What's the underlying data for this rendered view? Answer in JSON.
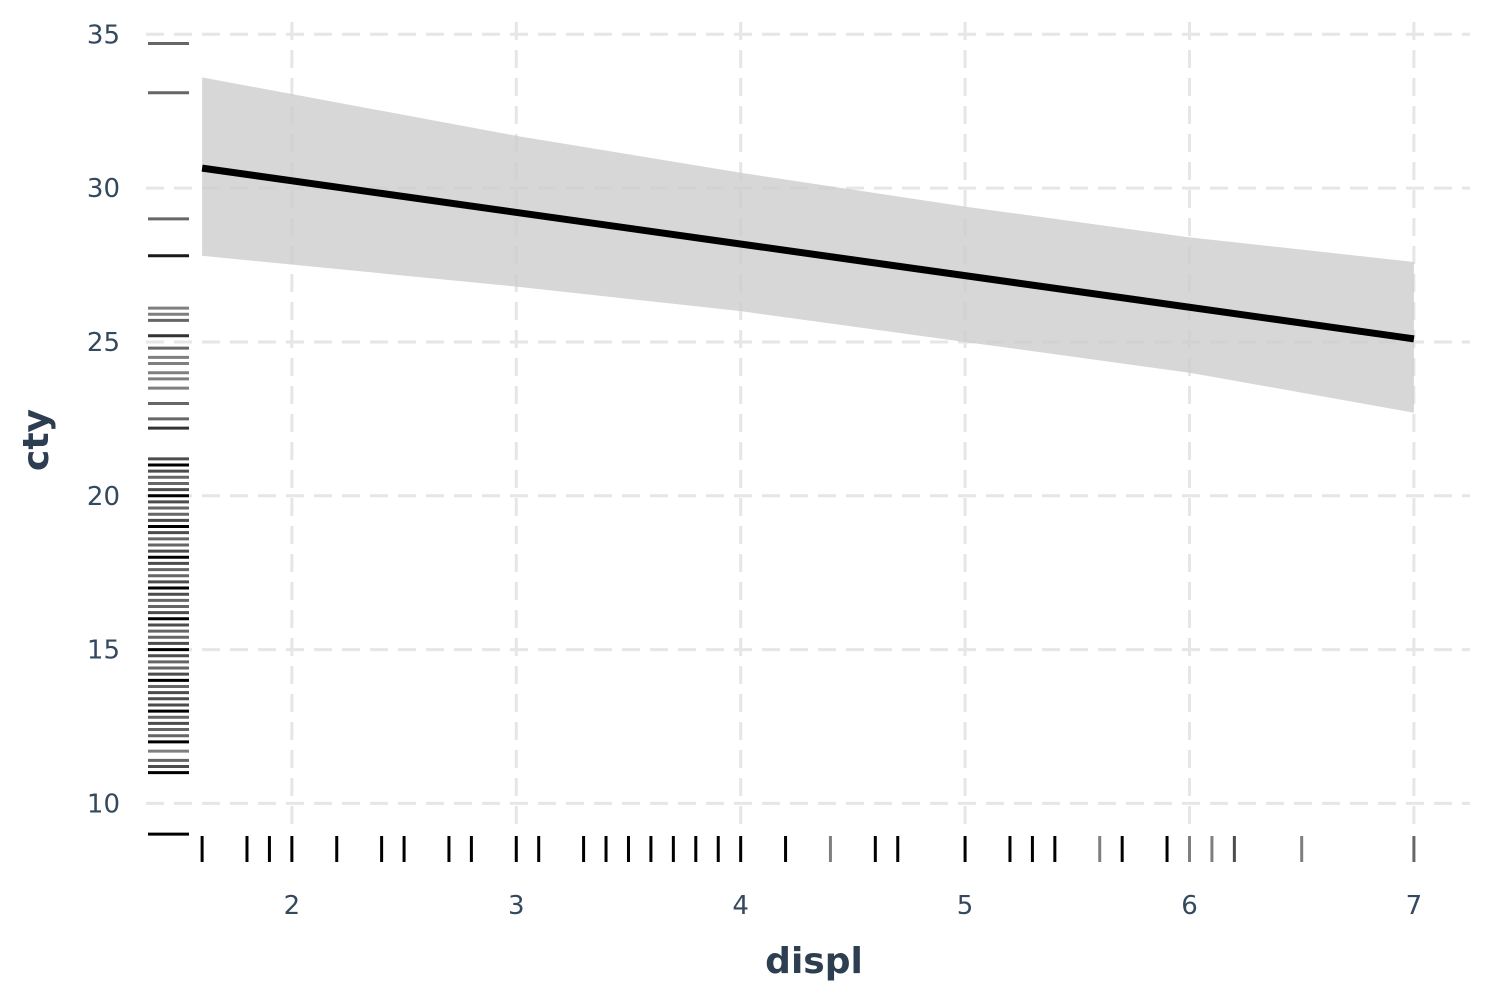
{
  "chart_data": {
    "type": "line",
    "title": "",
    "xlabel": "displ",
    "ylabel": "cty",
    "xlim": [
      1.35,
      7.25
    ],
    "ylim": [
      9.2,
      35.4
    ],
    "x_ticks": [
      2,
      3,
      4,
      5,
      6,
      7
    ],
    "y_ticks": [
      10,
      15,
      20,
      25,
      30,
      35
    ],
    "grid": true,
    "legend": "none",
    "fit_line": {
      "x": [
        1.6,
        7.0
      ],
      "y": [
        30.65,
        25.1
      ],
      "color": "#000000"
    },
    "confidence_band": {
      "x": [
        1.6,
        3.0,
        4.0,
        5.0,
        6.0,
        7.0
      ],
      "upper": [
        33.6,
        31.7,
        30.5,
        29.4,
        28.4,
        27.6
      ],
      "lower": [
        27.8,
        26.8,
        26.0,
        25.0,
        24.0,
        22.7
      ],
      "color": "#cccccc"
    },
    "rug_x": [
      {
        "v": 1.6,
        "o": 1
      },
      {
        "v": 1.8,
        "o": 1
      },
      {
        "v": 1.9,
        "o": 1
      },
      {
        "v": 2.0,
        "o": 1
      },
      {
        "v": 2.2,
        "o": 1
      },
      {
        "v": 2.4,
        "o": 1
      },
      {
        "v": 2.5,
        "o": 1
      },
      {
        "v": 2.7,
        "o": 1
      },
      {
        "v": 2.8,
        "o": 1
      },
      {
        "v": 3.0,
        "o": 1
      },
      {
        "v": 3.1,
        "o": 1
      },
      {
        "v": 3.3,
        "o": 1
      },
      {
        "v": 3.4,
        "o": 1
      },
      {
        "v": 3.5,
        "o": 1
      },
      {
        "v": 3.6,
        "o": 1
      },
      {
        "v": 3.7,
        "o": 1
      },
      {
        "v": 3.8,
        "o": 1
      },
      {
        "v": 3.9,
        "o": 1
      },
      {
        "v": 4.0,
        "o": 1
      },
      {
        "v": 4.2,
        "o": 1
      },
      {
        "v": 4.4,
        "o": 0.5
      },
      {
        "v": 4.6,
        "o": 1
      },
      {
        "v": 4.7,
        "o": 1
      },
      {
        "v": 5.0,
        "o": 1
      },
      {
        "v": 5.2,
        "o": 1
      },
      {
        "v": 5.3,
        "o": 1
      },
      {
        "v": 5.4,
        "o": 1
      },
      {
        "v": 5.6,
        "o": 0.5
      },
      {
        "v": 5.7,
        "o": 1
      },
      {
        "v": 5.9,
        "o": 1
      },
      {
        "v": 6.0,
        "o": 0.5
      },
      {
        "v": 6.1,
        "o": 0.5
      },
      {
        "v": 6.2,
        "o": 0.7
      },
      {
        "v": 6.5,
        "o": 0.5
      },
      {
        "v": 7.0,
        "o": 0.6
      }
    ],
    "rug_y": [
      {
        "v": 9,
        "o": 1
      },
      {
        "v": 11,
        "o": 1
      },
      {
        "v": 11.2,
        "o": 0.7
      },
      {
        "v": 11.4,
        "o": 0.6
      },
      {
        "v": 11.7,
        "o": 0.5
      },
      {
        "v": 12,
        "o": 1
      },
      {
        "v": 12.2,
        "o": 0.6
      },
      {
        "v": 12.4,
        "o": 0.6
      },
      {
        "v": 12.6,
        "o": 0.7
      },
      {
        "v": 12.8,
        "o": 0.6
      },
      {
        "v": 13,
        "o": 1
      },
      {
        "v": 13.2,
        "o": 0.7
      },
      {
        "v": 13.4,
        "o": 0.7
      },
      {
        "v": 13.6,
        "o": 0.7
      },
      {
        "v": 13.8,
        "o": 0.6
      },
      {
        "v": 14,
        "o": 1
      },
      {
        "v": 14.2,
        "o": 0.7
      },
      {
        "v": 14.4,
        "o": 0.6
      },
      {
        "v": 14.6,
        "o": 0.6
      },
      {
        "v": 14.8,
        "o": 0.7
      },
      {
        "v": 15,
        "o": 1
      },
      {
        "v": 15.2,
        "o": 0.7
      },
      {
        "v": 15.4,
        "o": 0.6
      },
      {
        "v": 15.6,
        "o": 0.6
      },
      {
        "v": 15.8,
        "o": 0.7
      },
      {
        "v": 16,
        "o": 1
      },
      {
        "v": 16.2,
        "o": 0.7
      },
      {
        "v": 16.4,
        "o": 0.6
      },
      {
        "v": 16.6,
        "o": 0.6
      },
      {
        "v": 16.8,
        "o": 0.7
      },
      {
        "v": 17,
        "o": 1
      },
      {
        "v": 17.2,
        "o": 0.7
      },
      {
        "v": 17.4,
        "o": 0.6
      },
      {
        "v": 17.6,
        "o": 0.6
      },
      {
        "v": 17.8,
        "o": 0.7
      },
      {
        "v": 18,
        "o": 1
      },
      {
        "v": 18.2,
        "o": 0.7
      },
      {
        "v": 18.4,
        "o": 0.6
      },
      {
        "v": 18.6,
        "o": 0.6
      },
      {
        "v": 18.8,
        "o": 0.7
      },
      {
        "v": 19,
        "o": 1
      },
      {
        "v": 19.2,
        "o": 0.7
      },
      {
        "v": 19.4,
        "o": 0.6
      },
      {
        "v": 19.6,
        "o": 0.6
      },
      {
        "v": 19.8,
        "o": 0.7
      },
      {
        "v": 20,
        "o": 1
      },
      {
        "v": 20.2,
        "o": 0.7
      },
      {
        "v": 20.4,
        "o": 0.6
      },
      {
        "v": 20.6,
        "o": 0.6
      },
      {
        "v": 20.8,
        "o": 0.7
      },
      {
        "v": 21,
        "o": 1
      },
      {
        "v": 21.2,
        "o": 0.7
      },
      {
        "v": 22.2,
        "o": 0.8
      },
      {
        "v": 22.5,
        "o": 0.6
      },
      {
        "v": 23,
        "o": 0.6
      },
      {
        "v": 23.5,
        "o": 0.5
      },
      {
        "v": 23.8,
        "o": 0.5
      },
      {
        "v": 24,
        "o": 0.5
      },
      {
        "v": 24.3,
        "o": 0.5
      },
      {
        "v": 24.5,
        "o": 0.5
      },
      {
        "v": 24.8,
        "o": 0.6
      },
      {
        "v": 25.2,
        "o": 0.8
      },
      {
        "v": 25.7,
        "o": 0.6
      },
      {
        "v": 25.9,
        "o": 0.5
      },
      {
        "v": 26.1,
        "o": 0.5
      },
      {
        "v": 27.8,
        "o": 0.9
      },
      {
        "v": 29,
        "o": 0.6
      },
      {
        "v": 33.1,
        "o": 0.6
      },
      {
        "v": 34.7,
        "o": 0.6
      }
    ]
  }
}
